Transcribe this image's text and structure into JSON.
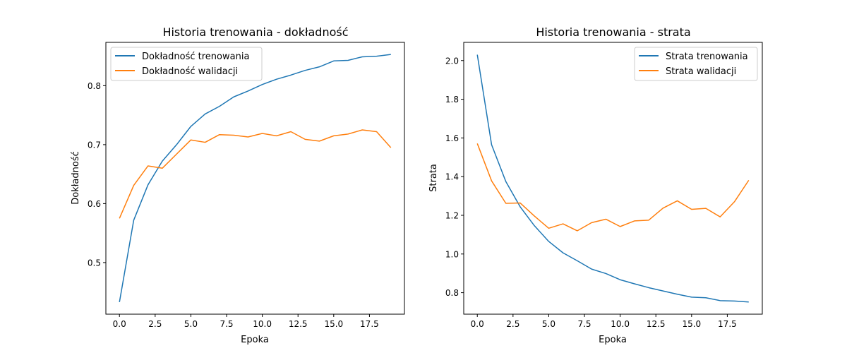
{
  "figure": {
    "colors": {
      "train": "#1f77b4",
      "validation": "#ff7f0e",
      "axes": "#000000",
      "background": "#ffffff",
      "legend_border": "#cccccc"
    }
  },
  "chart_data": [
    {
      "type": "line",
      "title": "Historia trenowania - dokładność",
      "xlabel": "Epoka",
      "ylabel": "Dokładność",
      "xlim": [
        -0.95,
        19.95
      ],
      "ylim": [
        0.4125,
        0.8735
      ],
      "xticks": [
        0.0,
        2.5,
        5.0,
        7.5,
        10.0,
        12.5,
        15.0,
        17.5
      ],
      "xtick_labels": [
        "0.0",
        "2.5",
        "5.0",
        "7.5",
        "10.0",
        "12.5",
        "15.0",
        "17.5"
      ],
      "yticks": [
        0.5,
        0.6,
        0.7,
        0.8
      ],
      "ytick_labels": [
        "0.5",
        "0.6",
        "0.7",
        "0.8"
      ],
      "grid": false,
      "legend_position": "top-left",
      "x": [
        0,
        1,
        2,
        3,
        4,
        5,
        6,
        7,
        8,
        9,
        10,
        11,
        12,
        13,
        14,
        15,
        16,
        17,
        18,
        19
      ],
      "series": [
        {
          "name": "Dokładność trenowania",
          "color_key": "train",
          "values": [
            0.433,
            0.572,
            0.632,
            0.672,
            0.7,
            0.731,
            0.752,
            0.765,
            0.781,
            0.791,
            0.802,
            0.811,
            0.818,
            0.826,
            0.832,
            0.842,
            0.843,
            0.849,
            0.85,
            0.853
          ]
        },
        {
          "name": "Dokładność walidacji",
          "color_key": "validation",
          "values": [
            0.575,
            0.631,
            0.664,
            0.66,
            0.684,
            0.708,
            0.704,
            0.717,
            0.716,
            0.713,
            0.719,
            0.715,
            0.722,
            0.709,
            0.706,
            0.715,
            0.718,
            0.725,
            0.722,
            0.695
          ]
        }
      ]
    },
    {
      "type": "line",
      "title": "Historia trenowania - strata",
      "xlabel": "Epoka",
      "ylabel": "Strata",
      "xlim": [
        -0.95,
        19.95
      ],
      "ylim": [
        0.689,
        2.094
      ],
      "xticks": [
        0.0,
        2.5,
        5.0,
        7.5,
        10.0,
        12.5,
        15.0,
        17.5
      ],
      "xtick_labels": [
        "0.0",
        "2.5",
        "5.0",
        "7.5",
        "10.0",
        "12.5",
        "15.0",
        "17.5"
      ],
      "yticks": [
        0.8,
        1.0,
        1.2,
        1.4,
        1.6,
        1.8,
        2.0
      ],
      "ytick_labels": [
        "0.8",
        "1.0",
        "1.2",
        "1.4",
        "1.6",
        "1.8",
        "2.0"
      ],
      "grid": false,
      "legend_position": "top-right",
      "x": [
        0,
        1,
        2,
        3,
        4,
        5,
        6,
        7,
        8,
        9,
        10,
        11,
        12,
        13,
        14,
        15,
        16,
        17,
        18,
        19
      ],
      "series": [
        {
          "name": "Strata trenowania",
          "color_key": "train",
          "values": [
            2.03,
            1.565,
            1.374,
            1.244,
            1.146,
            1.065,
            1.006,
            0.965,
            0.922,
            0.899,
            0.867,
            0.846,
            0.826,
            0.809,
            0.792,
            0.777,
            0.774,
            0.759,
            0.757,
            0.752
          ]
        },
        {
          "name": "Strata walidacji",
          "color_key": "validation",
          "values": [
            1.571,
            1.378,
            1.262,
            1.264,
            1.196,
            1.133,
            1.156,
            1.12,
            1.162,
            1.18,
            1.142,
            1.171,
            1.175,
            1.237,
            1.275,
            1.231,
            1.236,
            1.192,
            1.27,
            1.381
          ]
        }
      ]
    }
  ]
}
